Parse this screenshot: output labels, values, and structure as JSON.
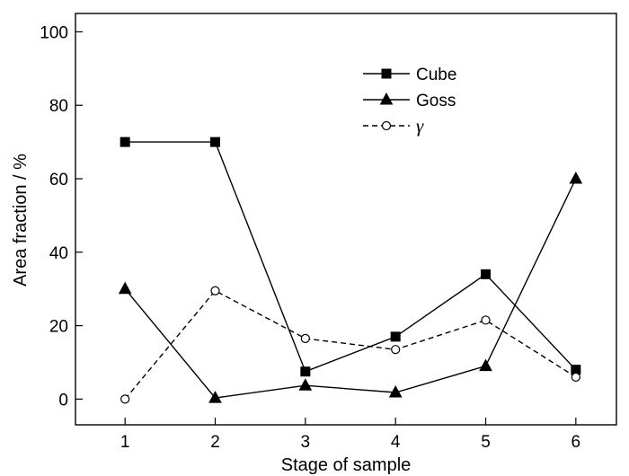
{
  "chart_data": {
    "type": "line",
    "title": "",
    "xlabel": "Stage of sample",
    "ylabel": "Area fraction / %",
    "x": [
      1,
      2,
      3,
      4,
      5,
      6
    ],
    "xlim": [
      0.45,
      6.45
    ],
    "ylim": [
      -7,
      105
    ],
    "xticks": [
      1,
      2,
      3,
      4,
      5,
      6
    ],
    "yticks": [
      0,
      20,
      40,
      60,
      80,
      100
    ],
    "grid": false,
    "legend_position": "top-right",
    "series": [
      {
        "name": "Cube",
        "values": [
          70,
          70,
          7.5,
          17,
          34,
          8
        ],
        "marker": "square",
        "marker_fill": "filled",
        "line_style": "solid",
        "color": "#000000"
      },
      {
        "name": "Goss",
        "values": [
          30,
          0.3,
          3.7,
          1.8,
          9,
          60
        ],
        "marker": "triangle",
        "marker_fill": "filled",
        "line_style": "solid",
        "color": "#000000"
      },
      {
        "name": "γ",
        "values": [
          0,
          29.5,
          16.5,
          13.5,
          21.5,
          6
        ],
        "marker": "circle",
        "marker_fill": "open",
        "line_style": "dashed",
        "color": "#000000"
      }
    ]
  }
}
